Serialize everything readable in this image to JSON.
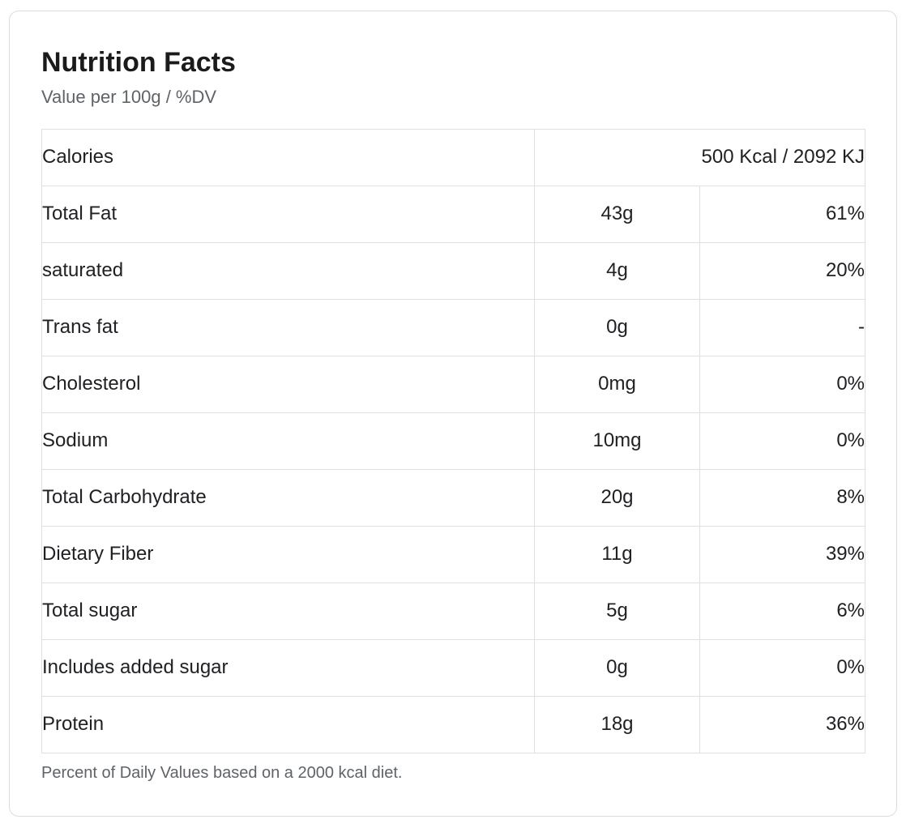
{
  "card": {
    "title": "Nutrition Facts",
    "subtitle": "Value per 100g / %DV",
    "footnote": "Percent of Daily Values based on a 2000 kcal diet."
  },
  "table": {
    "calories_row": {
      "label": "Calories",
      "value": "500 Kcal / 2092 KJ"
    },
    "rows": [
      {
        "label": "Total Fat",
        "amount": "43g",
        "dv": "61%"
      },
      {
        "label": "saturated",
        "amount": "4g",
        "dv": "20%"
      },
      {
        "label": "Trans fat",
        "amount": "0g",
        "dv": "-"
      },
      {
        "label": "Cholesterol",
        "amount": "0mg",
        "dv": "0%"
      },
      {
        "label": "Sodium",
        "amount": "10mg",
        "dv": "0%"
      },
      {
        "label": "Total Carbohydrate",
        "amount": "20g",
        "dv": "8%"
      },
      {
        "label": "Dietary Fiber",
        "amount": "11g",
        "dv": "39%"
      },
      {
        "label": "Total sugar",
        "amount": "5g",
        "dv": "6%"
      },
      {
        "label": "Includes added sugar",
        "amount": "0g",
        "dv": "0%"
      },
      {
        "label": "Protein",
        "amount": "18g",
        "dv": "36%"
      }
    ]
  },
  "colors": {
    "text": "#202124",
    "secondary_text": "#5f6368",
    "table_border": "#e0e0e0",
    "card_border": "#dcdcdc",
    "background": "#ffffff"
  }
}
